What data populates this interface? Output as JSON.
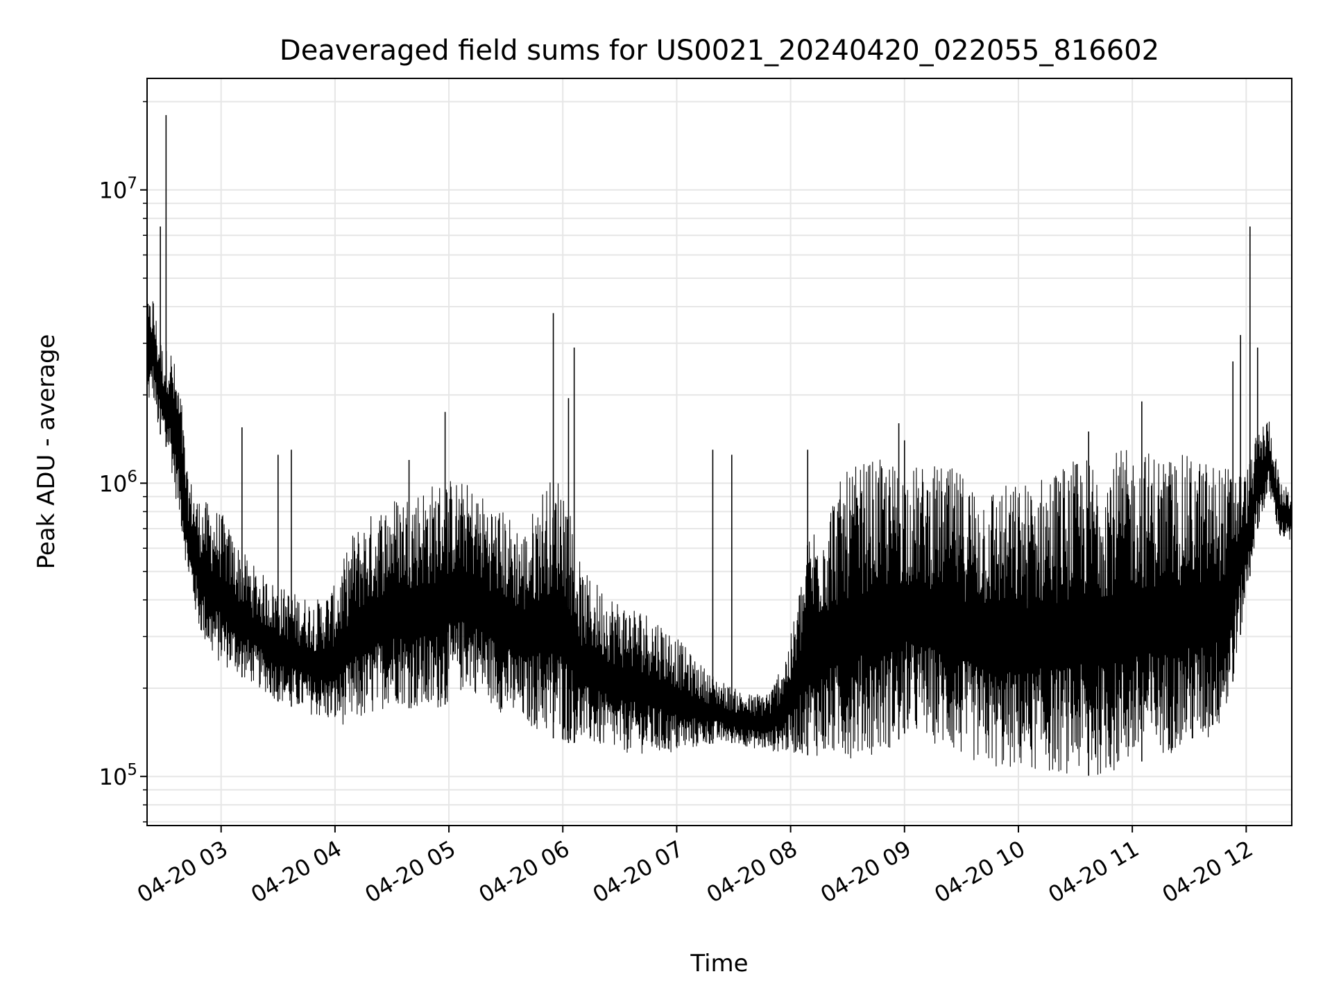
{
  "chart_data": {
    "type": "line",
    "title": "Deaveraged field sums for US0021_20240420_022055_816602",
    "xlabel": "Time",
    "ylabel": "Peak ADU - average",
    "yscale": "log",
    "ylim": [
      68000,
      24000000
    ],
    "xlim": [
      "2024-04-20T02:21:00",
      "2024-04-20T12:24:00"
    ],
    "grid": true,
    "line_color": "#000000",
    "grid_color": "#e6e6e6",
    "x_ticks": [
      {
        "t": "2024-04-20T03:00:00",
        "label": "04-20 03"
      },
      {
        "t": "2024-04-20T04:00:00",
        "label": "04-20 04"
      },
      {
        "t": "2024-04-20T05:00:00",
        "label": "04-20 05"
      },
      {
        "t": "2024-04-20T06:00:00",
        "label": "04-20 06"
      },
      {
        "t": "2024-04-20T07:00:00",
        "label": "04-20 07"
      },
      {
        "t": "2024-04-20T08:00:00",
        "label": "04-20 08"
      },
      {
        "t": "2024-04-20T09:00:00",
        "label": "04-20 09"
      },
      {
        "t": "2024-04-20T10:00:00",
        "label": "04-20 10"
      },
      {
        "t": "2024-04-20T11:00:00",
        "label": "04-20 11"
      },
      {
        "t": "2024-04-20T12:00:00",
        "label": "04-20 12"
      }
    ],
    "y_ticks": [
      {
        "value": 100000,
        "base": "10",
        "exp": "5"
      },
      {
        "value": 1000000,
        "base": "10",
        "exp": "6"
      },
      {
        "value": 10000000,
        "base": "10",
        "exp": "7"
      }
    ],
    "series": [
      {
        "x": [
          "2024-04-20T02:21:00",
          "2024-04-20T02:24:00",
          "2024-04-20T02:27:00",
          "2024-04-20T02:30:00",
          "2024-04-20T02:33:00",
          "2024-04-20T02:36:00",
          "2024-04-20T02:39:00",
          "2024-04-20T02:42:00",
          "2024-04-20T02:48:00",
          "2024-04-20T02:54:00",
          "2024-04-20T03:00:00",
          "2024-04-20T03:10:00",
          "2024-04-20T03:20:00",
          "2024-04-20T03:30:00",
          "2024-04-20T03:40:00",
          "2024-04-20T03:50:00",
          "2024-04-20T04:00:00",
          "2024-04-20T04:10:00",
          "2024-04-20T04:20:00",
          "2024-04-20T04:30:00",
          "2024-04-20T04:40:00",
          "2024-04-20T04:50:00",
          "2024-04-20T05:00:00",
          "2024-04-20T05:10:00",
          "2024-04-20T05:20:00",
          "2024-04-20T05:30:00",
          "2024-04-20T05:40:00",
          "2024-04-20T05:50:00",
          "2024-04-20T06:00:00",
          "2024-04-20T06:10:00",
          "2024-04-20T06:20:00",
          "2024-04-20T06:30:00",
          "2024-04-20T06:40:00",
          "2024-04-20T06:50:00",
          "2024-04-20T07:00:00",
          "2024-04-20T07:10:00",
          "2024-04-20T07:20:00",
          "2024-04-20T07:30:00",
          "2024-04-20T07:40:00",
          "2024-04-20T07:50:00",
          "2024-04-20T08:00:00",
          "2024-04-20T08:10:00",
          "2024-04-20T08:20:00",
          "2024-04-20T08:30:00",
          "2024-04-20T08:40:00",
          "2024-04-20T08:50:00",
          "2024-04-20T09:00:00",
          "2024-04-20T09:10:00",
          "2024-04-20T09:20:00",
          "2024-04-20T09:30:00",
          "2024-04-20T09:40:00",
          "2024-04-20T09:50:00",
          "2024-04-20T10:00:00",
          "2024-04-20T10:10:00",
          "2024-04-20T10:20:00",
          "2024-04-20T10:30:00",
          "2024-04-20T10:40:00",
          "2024-04-20T10:50:00",
          "2024-04-20T11:00:00",
          "2024-04-20T11:10:00",
          "2024-04-20T11:20:00",
          "2024-04-20T11:30:00",
          "2024-04-20T11:40:00",
          "2024-04-20T11:50:00",
          "2024-04-20T12:00:00",
          "2024-04-20T12:06:00",
          "2024-04-20T12:12:00",
          "2024-04-20T12:18:00",
          "2024-04-20T12:24:00"
        ],
        "y_low": [
          1800000,
          2000000,
          1500000,
          1400000,
          1200000,
          900000,
          700000,
          500000,
          320000,
          260000,
          240000,
          220000,
          200000,
          180000,
          170000,
          160000,
          150000,
          150000,
          160000,
          180000,
          170000,
          160000,
          180000,
          200000,
          180000,
          160000,
          150000,
          140000,
          130000,
          130000,
          125000,
          120000,
          120000,
          118000,
          120000,
          125000,
          130000,
          130000,
          125000,
          122000,
          120000,
          118000,
          115000,
          115000,
          118000,
          120000,
          140000,
          135000,
          125000,
          115000,
          110000,
          105000,
          105000,
          105000,
          102000,
          102000,
          100000,
          102000,
          110000,
          115000,
          120000,
          125000,
          130000,
          160000,
          400000,
          700000,
          900000,
          650000,
          620000
        ],
        "y_high": [
          4000000,
          4500000,
          3300000,
          2800000,
          3000000,
          2500000,
          2000000,
          1100000,
          900000,
          850000,
          800000,
          600000,
          500000,
          450000,
          420000,
          400000,
          450000,
          700000,
          800000,
          900000,
          950000,
          1000000,
          1050000,
          1000000,
          900000,
          800000,
          700000,
          1000000,
          1100000,
          500000,
          450000,
          400000,
          380000,
          350000,
          300000,
          250000,
          220000,
          200000,
          190000,
          200000,
          300000,
          700000,
          900000,
          1100000,
          1200000,
          1200000,
          1150000,
          1150000,
          1150000,
          1100000,
          1000000,
          1000000,
          1000000,
          1050000,
          1150000,
          1200000,
          1250000,
          1300000,
          1300000,
          1300000,
          1250000,
          1250000,
          1200000,
          1150000,
          1100000,
          1500000,
          1700000,
          1000000,
          950000
        ]
      }
    ],
    "spikes": [
      {
        "t": "2024-04-20T02:31:00",
        "value": 18000000
      },
      {
        "t": "2024-04-20T02:28:00",
        "value": 7500000
      },
      {
        "t": "2024-04-20T03:11:00",
        "value": 1550000
      },
      {
        "t": "2024-04-20T03:30:00",
        "value": 1250000
      },
      {
        "t": "2024-04-20T03:37:00",
        "value": 1300000
      },
      {
        "t": "2024-04-20T04:39:00",
        "value": 1200000
      },
      {
        "t": "2024-04-20T04:58:00",
        "value": 1750000
      },
      {
        "t": "2024-04-20T05:55:00",
        "value": 3800000
      },
      {
        "t": "2024-04-20T06:03:00",
        "value": 1950000
      },
      {
        "t": "2024-04-20T06:06:00",
        "value": 2900000
      },
      {
        "t": "2024-04-20T07:19:00",
        "value": 1300000
      },
      {
        "t": "2024-04-20T07:29:00",
        "value": 1250000
      },
      {
        "t": "2024-04-20T08:09:00",
        "value": 1300000
      },
      {
        "t": "2024-04-20T08:57:00",
        "value": 1600000
      },
      {
        "t": "2024-04-20T09:00:00",
        "value": 1400000
      },
      {
        "t": "2024-04-20T10:37:00",
        "value": 1500000
      },
      {
        "t": "2024-04-20T11:05:00",
        "value": 1900000
      },
      {
        "t": "2024-04-20T11:53:00",
        "value": 2600000
      },
      {
        "t": "2024-04-20T11:57:00",
        "value": 3200000
      },
      {
        "t": "2024-04-20T12:02:00",
        "value": 7500000
      },
      {
        "t": "2024-04-20T12:06:00",
        "value": 2900000
      }
    ]
  }
}
